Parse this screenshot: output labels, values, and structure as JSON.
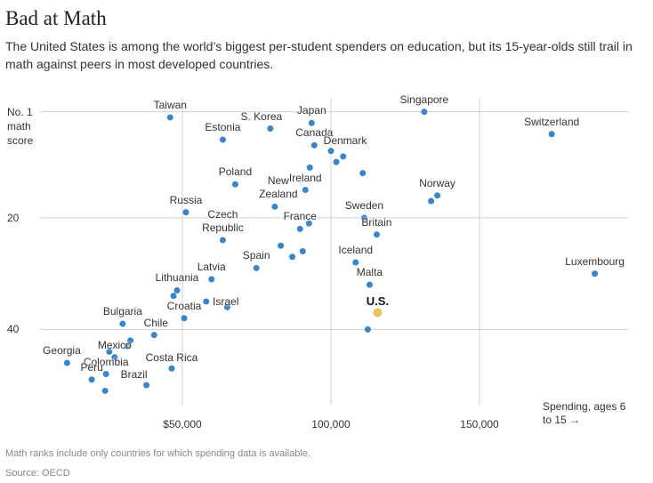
{
  "chart_data": {
    "type": "scatter",
    "title": "Bad at Math",
    "subtitle": "The United States is among the world’s biggest per-student spenders on education, but its 15-year-olds still trail in math against peers in most developed countries.",
    "x_label": "Spending, ages 6 to 15 →",
    "note": "Math ranks include only countries for which spending data is available.",
    "source": "Source: OECD",
    "xlim": [
      0,
      200000
    ],
    "ylim": [
      -1.5,
      53.5
    ],
    "y_inverted": true,
    "xticks": [
      {
        "value": 50000,
        "label": "$50,000"
      },
      {
        "value": 100000,
        "label": "100,000"
      },
      {
        "value": 150000,
        "label": "150,000"
      }
    ],
    "yticks": [
      {
        "value": 1,
        "label": "No. 1 math score"
      },
      20,
      40
    ],
    "grid": true,
    "series": [
      {
        "color": "#3a84c9",
        "names": [
          "Taiwan",
          "Singapore",
          "Switzerland",
          "Japan",
          "S. Korea",
          "Estonia",
          "Canada",
          "Denmark",
          null,
          null,
          null,
          null,
          "Poland",
          "Ireland",
          "Norway",
          null,
          "New Zealand",
          "Russia",
          "Sweden",
          null,
          "France",
          "Britain",
          "Czech Republic",
          null,
          null,
          null,
          "Iceland",
          "Spain",
          "Luxembourg",
          "Latvia",
          "Malta",
          "Lithuania",
          null,
          "Israel",
          null,
          "U.S.",
          "Croatia",
          "Bulgaria",
          null,
          "Chile",
          null,
          null,
          null,
          "Mexico",
          "Georgia",
          "Costa Rica",
          "Colombia",
          "Peru",
          "Brazil",
          null
        ],
        "x": [
          45900,
          131400,
          174300,
          93500,
          79600,
          63600,
          94400,
          100000,
          104100,
          101800,
          92900,
          110700,
          67800,
          91400,
          135800,
          133700,
          81100,
          51200,
          111200,
          92600,
          89600,
          115400,
          63600,
          83100,
          90500,
          87000,
          108300,
          74900,
          188800,
          59800,
          113000,
          48200,
          47000,
          58000,
          65100,
          115700,
          50600,
          29900,
          112400,
          40500,
          32500,
          31400,
          25400,
          27200,
          11200,
          46400,
          24300,
          19500,
          37900,
          24000
        ],
        "values": [
          2,
          1,
          5,
          3,
          4,
          6,
          7,
          8,
          9,
          10,
          11,
          12,
          14,
          15,
          16,
          17,
          18,
          19,
          20,
          21,
          22,
          23,
          24,
          25,
          26,
          27,
          28,
          29,
          30,
          31,
          32,
          33,
          34,
          35,
          36,
          37,
          38,
          39,
          40,
          41,
          42,
          43,
          44,
          45,
          46,
          47,
          48,
          49,
          50,
          51
        ],
        "highlight": {
          "name": "U.S.",
          "color": "#e9c460"
        }
      }
    ]
  }
}
